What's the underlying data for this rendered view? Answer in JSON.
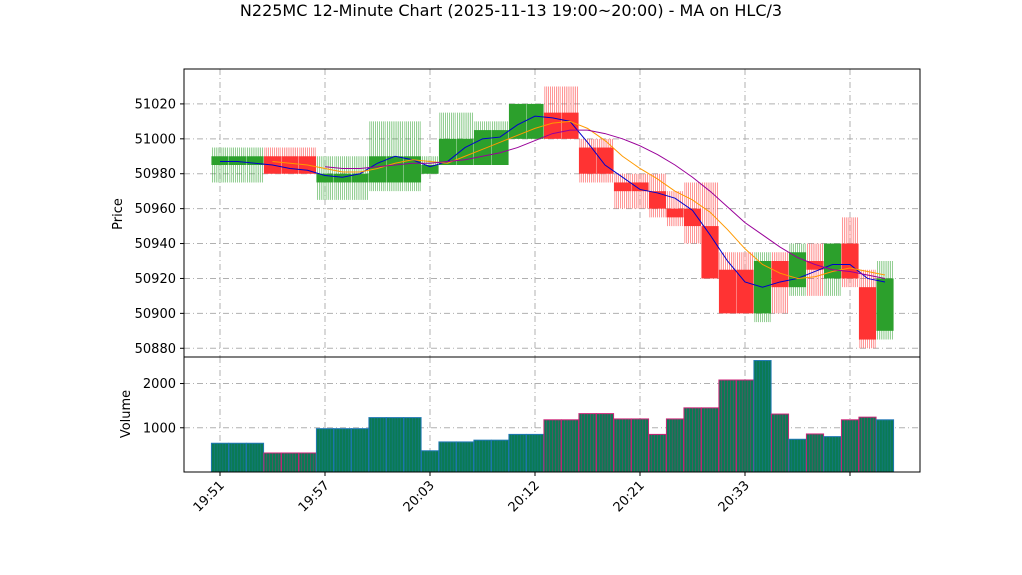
{
  "chart_data": {
    "type": "candlestick",
    "title": "N225MC 12-Minute Chart (2025-11-13 19:00~20:00) - MA on HLC/3",
    "price_panel": {
      "ylabel": "Price",
      "ylim": [
        50875,
        51040
      ],
      "yticks": [
        50880,
        50900,
        50920,
        50940,
        50960,
        50980,
        51000,
        51020
      ],
      "grid": true
    },
    "volume_panel": {
      "ylabel": "Volume",
      "ylim": [
        0,
        2600
      ],
      "yticks": [
        1000,
        2000
      ],
      "grid": true
    },
    "x_tick_labels": [
      {
        "index": 0,
        "label": "19:51"
      },
      {
        "index": 6,
        "label": "19:57"
      },
      {
        "index": 12,
        "label": "20:03"
      },
      {
        "index": 18,
        "label": "20:12"
      },
      {
        "index": 24,
        "label": "20:21"
      },
      {
        "index": 30,
        "label": "20:33"
      },
      {
        "index": 36,
        "label": ""
      }
    ],
    "candles": [
      {
        "open": 50985,
        "high": 50995,
        "low": 50975,
        "close": 50990,
        "volume": 650
      },
      {
        "open": 50985,
        "high": 50995,
        "low": 50975,
        "close": 50990,
        "volume": 650
      },
      {
        "open": 50985,
        "high": 50995,
        "low": 50975,
        "close": 50990,
        "volume": 650
      },
      {
        "open": 50990,
        "high": 50995,
        "low": 50980,
        "close": 50980,
        "volume": 430
      },
      {
        "open": 50990,
        "high": 50995,
        "low": 50980,
        "close": 50980,
        "volume": 430
      },
      {
        "open": 50990,
        "high": 50995,
        "low": 50980,
        "close": 50980,
        "volume": 430
      },
      {
        "open": 50975,
        "high": 50990,
        "low": 50965,
        "close": 50980,
        "volume": 980
      },
      {
        "open": 50975,
        "high": 50990,
        "low": 50965,
        "close": 50980,
        "volume": 980
      },
      {
        "open": 50975,
        "high": 50990,
        "low": 50965,
        "close": 50980,
        "volume": 980
      },
      {
        "open": 50975,
        "high": 51010,
        "low": 50970,
        "close": 50990,
        "volume": 1230
      },
      {
        "open": 50975,
        "high": 51010,
        "low": 50970,
        "close": 50990,
        "volume": 1230
      },
      {
        "open": 50975,
        "high": 51010,
        "low": 50970,
        "close": 50990,
        "volume": 1230
      },
      {
        "open": 50980,
        "high": 50990,
        "low": 50980,
        "close": 50985,
        "volume": 480
      },
      {
        "open": 50985,
        "high": 51015,
        "low": 50985,
        "close": 51000,
        "volume": 680
      },
      {
        "open": 50985,
        "high": 51015,
        "low": 50985,
        "close": 51000,
        "volume": 680
      },
      {
        "open": 50985,
        "high": 51010,
        "low": 50985,
        "close": 51005,
        "volume": 720
      },
      {
        "open": 50985,
        "high": 51010,
        "low": 50985,
        "close": 51005,
        "volume": 720
      },
      {
        "open": 51000,
        "high": 51020,
        "low": 51000,
        "close": 51020,
        "volume": 850
      },
      {
        "open": 51000,
        "high": 51020,
        "low": 51000,
        "close": 51020,
        "volume": 850
      },
      {
        "open": 51015,
        "high": 51030,
        "low": 51000,
        "close": 51000,
        "volume": 1180
      },
      {
        "open": 51015,
        "high": 51030,
        "low": 51000,
        "close": 51000,
        "volume": 1180
      },
      {
        "open": 50995,
        "high": 51000,
        "low": 50975,
        "close": 50980,
        "volume": 1320
      },
      {
        "open": 50995,
        "high": 51000,
        "low": 50975,
        "close": 50980,
        "volume": 1320
      },
      {
        "open": 50975,
        "high": 50980,
        "low": 50960,
        "close": 50970,
        "volume": 1200
      },
      {
        "open": 50975,
        "high": 50980,
        "low": 50960,
        "close": 50970,
        "volume": 1200
      },
      {
        "open": 50970,
        "high": 50980,
        "low": 50955,
        "close": 50960,
        "volume": 850
      },
      {
        "open": 50960,
        "high": 50970,
        "low": 50950,
        "close": 50955,
        "volume": 1200
      },
      {
        "open": 50960,
        "high": 50975,
        "low": 50940,
        "close": 50950,
        "volume": 1450
      },
      {
        "open": 50950,
        "high": 50975,
        "low": 50920,
        "close": 50920,
        "volume": 1450
      },
      {
        "open": 50925,
        "high": 50935,
        "low": 50900,
        "close": 50900,
        "volume": 2080
      },
      {
        "open": 50925,
        "high": 50935,
        "low": 50900,
        "close": 50900,
        "volume": 2080
      },
      {
        "open": 50900,
        "high": 50935,
        "low": 50895,
        "close": 50930,
        "volume": 2520
      },
      {
        "open": 50930,
        "high": 50935,
        "low": 50900,
        "close": 50915,
        "volume": 1310
      },
      {
        "open": 50915,
        "high": 50940,
        "low": 50910,
        "close": 50935,
        "volume": 740
      },
      {
        "open": 50930,
        "high": 50940,
        "low": 50910,
        "close": 50925,
        "volume": 860
      },
      {
        "open": 50920,
        "high": 50940,
        "low": 50910,
        "close": 50940,
        "volume": 800
      },
      {
        "open": 50940,
        "high": 50955,
        "low": 50915,
        "close": 50920,
        "volume": 1180
      },
      {
        "open": 50915,
        "high": 50925,
        "low": 50880,
        "close": 50885,
        "volume": 1240
      },
      {
        "open": 50890,
        "high": 50930,
        "low": 50885,
        "close": 50920,
        "volume": 1180
      }
    ],
    "ma_series": [
      {
        "color": "#0000cc",
        "values": [
          50987,
          50987,
          50986,
          50985,
          50983,
          50982,
          50979,
          50978,
          50980,
          50986,
          50990,
          50988,
          50984,
          50987,
          50995,
          51000,
          51001,
          51008,
          51013,
          51012,
          51010,
          50998,
          50985,
          50978,
          50971,
          50969,
          50966,
          50959,
          50945,
          50930,
          50918,
          50915,
          50918,
          50920,
          50924,
          50928,
          50928,
          50920,
          50918
        ]
      },
      {
        "color": "#ff9900",
        "values": [
          null,
          null,
          null,
          50987,
          50986,
          50985,
          50983,
          50981,
          50981,
          50983,
          50986,
          50988,
          50987,
          50986,
          50990,
          50994,
          50998,
          51002,
          51006,
          51009,
          51010,
          51006,
          50999,
          50990,
          50983,
          50977,
          50970,
          50965,
          50958,
          50948,
          50937,
          50928,
          50923,
          50920,
          50921,
          50924,
          50926,
          50924,
          50922
        ]
      },
      {
        "color": "#990099",
        "values": [
          null,
          null,
          null,
          null,
          null,
          null,
          50984,
          50983,
          50983,
          50984,
          50985,
          50986,
          50986,
          50987,
          50988,
          50990,
          50992,
          50995,
          50999,
          51003,
          51005,
          51005,
          51003,
          51000,
          50996,
          50991,
          50985,
          50978,
          50970,
          50961,
          50952,
          50945,
          50938,
          50932,
          50928,
          50925,
          50924,
          50922,
          50920
        ]
      }
    ],
    "colors": {
      "up": "#2ca02c",
      "down": "#ff3333",
      "volume_fill": "#0a7a55",
      "volume_edge_up": "#1f77b4",
      "volume_edge_down": "#cc2277",
      "grid": "#b0b0b0"
    }
  }
}
